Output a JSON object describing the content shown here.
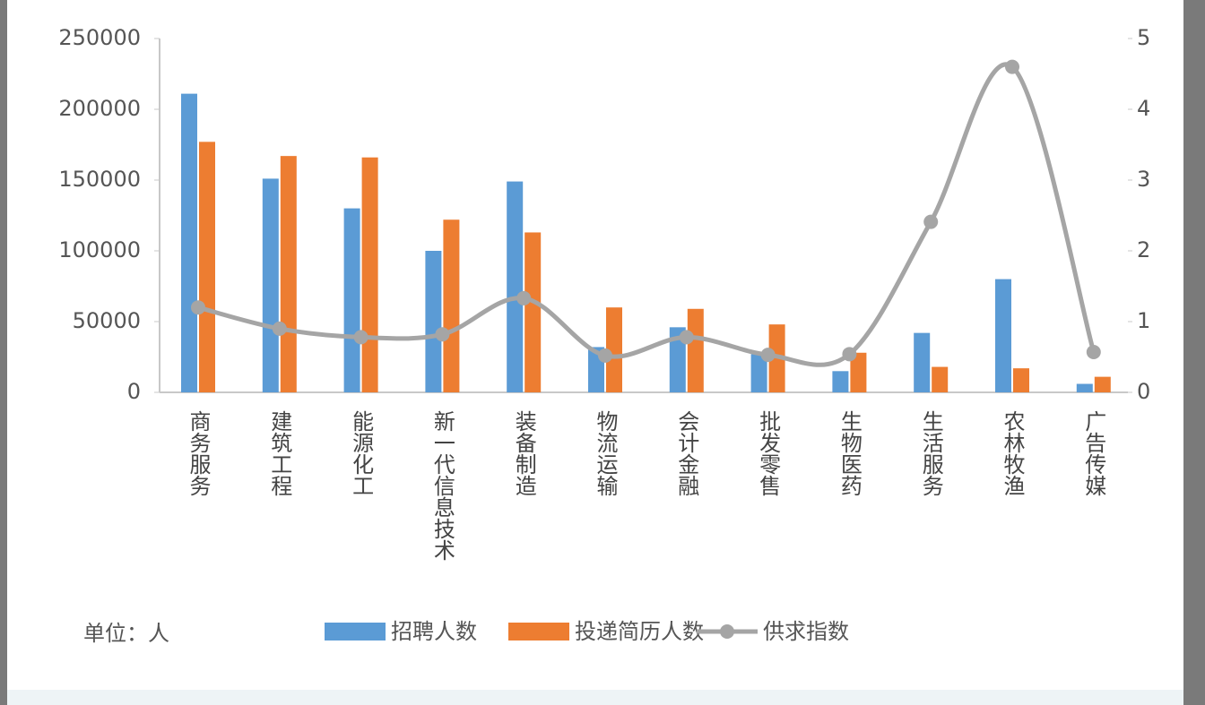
{
  "chart_data": {
    "type": "bar-line",
    "categories": [
      "商务服务",
      "建筑工程",
      "能源化工",
      "新一代信息技术",
      "装备制造",
      "物流运输",
      "会计金融",
      "批发零售",
      "生物医药",
      "生活服务",
      "农林牧渔",
      "广告传媒"
    ],
    "series": [
      {
        "name": "招聘人数",
        "color": "#5b9bd5",
        "type": "bar",
        "values": [
          211000,
          151000,
          130000,
          100000,
          149000,
          32000,
          46000,
          27000,
          15000,
          42000,
          80000,
          6000
        ]
      },
      {
        "name": "投递简历人数",
        "color": "#ed7d31",
        "type": "bar",
        "values": [
          177000,
          167000,
          166000,
          122000,
          113000,
          60000,
          59000,
          48000,
          28000,
          18000,
          17000,
          11000
        ]
      },
      {
        "name": "供求指数",
        "color": "#a5a5a5",
        "type": "line",
        "axis": "y2",
        "values": [
          1.2,
          0.9,
          0.78,
          0.82,
          1.33,
          0.52,
          0.78,
          0.53,
          0.54,
          2.41,
          4.6,
          0.57
        ]
      }
    ],
    "ylim": [
      0,
      250000
    ],
    "yticks": [
      0,
      50000,
      100000,
      150000,
      200000,
      250000
    ],
    "y2lim": [
      0,
      5
    ],
    "y2ticks": [
      0,
      1,
      2,
      3,
      4,
      5
    ],
    "unit_note": "单位：人"
  }
}
